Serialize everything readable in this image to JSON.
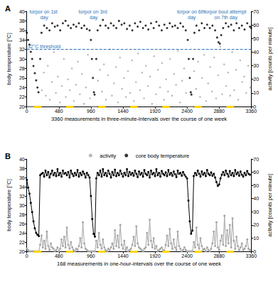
{
  "chart_data": [
    {
      "type": "scatter",
      "title": "A",
      "x_label": "3360 measurements in three-minute-intervals over the course of one week",
      "y_label": "body temperature [°C]",
      "y2_label": "activity [counts per minute]",
      "xlim": [
        0,
        3360
      ],
      "xticks": [
        0,
        480,
        960,
        1440,
        1920,
        2400,
        2880,
        3360
      ],
      "ylim": [
        20,
        40
      ],
      "yticks": [
        20,
        22,
        24,
        26,
        28,
        30,
        32,
        34,
        36,
        38,
        40
      ],
      "y2lim": [
        0,
        70
      ],
      "y2ticks": [
        0,
        10,
        20,
        30,
        40,
        50,
        60,
        70
      ],
      "grid": false,
      "series": [
        {
          "name": "activity",
          "color": "#a6a6a6",
          "marker": "circle",
          "axis": "y2",
          "x": [
            15,
            45,
            75,
            105,
            135,
            165,
            195,
            225,
            255,
            285,
            315,
            345,
            375,
            405,
            435,
            465,
            495,
            525,
            555,
            585,
            615,
            645,
            675,
            705,
            735,
            765,
            795,
            825,
            855,
            885,
            915,
            945,
            975,
            1005,
            1035,
            1065,
            1095,
            1125,
            1155,
            1185,
            1215,
            1245,
            1275,
            1305,
            1335,
            1365,
            1395,
            1425,
            1455,
            1485,
            1515,
            1545,
            1575,
            1605,
            1635,
            1665,
            1695,
            1725,
            1755,
            1785,
            1815,
            1845,
            1875,
            1905,
            1935,
            1965,
            1995,
            2025,
            2055,
            2085,
            2115,
            2145,
            2175,
            2205,
            2235,
            2265,
            2295,
            2325,
            2355,
            2385,
            2415,
            2445,
            2475,
            2505,
            2535,
            2565,
            2595,
            2625,
            2655,
            2685,
            2715,
            2745,
            2775,
            2805,
            2835,
            2865,
            2895,
            2925,
            2955,
            2985,
            3015,
            3045,
            3075,
            3105,
            3135,
            3165,
            3195,
            3225,
            3255,
            3285,
            3315,
            3345
          ],
          "values": [
            0,
            0,
            0,
            0,
            0,
            0,
            0,
            12,
            25,
            8,
            30,
            5,
            18,
            40,
            10,
            22,
            3,
            15,
            35,
            7,
            20,
            12,
            28,
            4,
            16,
            33,
            9,
            24,
            2,
            14,
            38,
            6,
            0,
            0,
            0,
            19,
            27,
            11,
            31,
            5,
            23,
            42,
            8,
            17,
            29,
            3,
            36,
            13,
            21,
            7,
            26,
            10,
            34,
            4,
            18,
            39,
            12,
            25,
            6,
            30,
            15,
            22,
            2,
            37,
            9,
            27,
            14,
            32,
            5,
            20,
            11,
            35,
            8,
            24,
            16,
            41,
            3,
            19,
            28,
            10,
            0,
            0,
            0,
            26,
            13,
            33,
            7,
            21,
            38,
            4,
            17,
            29,
            11,
            36,
            6,
            23,
            44,
            9,
            31,
            15,
            25,
            8,
            40,
            12,
            27,
            5,
            34,
            18,
            22,
            10,
            30,
            14
          ]
        },
        {
          "name": "core body temperature",
          "color": "#000000",
          "marker": "circle",
          "x": [
            0,
            20,
            40,
            60,
            80,
            100,
            120,
            140,
            160,
            175,
            200,
            220,
            260,
            300,
            340,
            380,
            420,
            460,
            500,
            540,
            580,
            620,
            660,
            700,
            740,
            780,
            820,
            860,
            900,
            940,
            960,
            975,
            990,
            1005,
            1015,
            1040,
            1060,
            1100,
            1140,
            1180,
            1220,
            1260,
            1300,
            1340,
            1380,
            1420,
            1460,
            1500,
            1540,
            1580,
            1620,
            1660,
            1700,
            1740,
            1780,
            1820,
            1860,
            1900,
            1940,
            1980,
            2020,
            2060,
            2100,
            2140,
            2180,
            2220,
            2260,
            2300,
            2340,
            2380,
            2410,
            2425,
            2440,
            2455,
            2465,
            2490,
            2510,
            2540,
            2580,
            2620,
            2660,
            2700,
            2740,
            2780,
            2820,
            2850,
            2870,
            2890,
            2910,
            2940,
            2980,
            3020,
            3060,
            3100,
            3140,
            3180,
            3220,
            3260,
            3300,
            3340,
            3360
          ],
          "values": [
            35.5,
            34,
            33,
            31.5,
            30,
            28.5,
            27,
            25.5,
            24,
            23,
            30,
            35.5,
            37,
            36.5,
            36,
            37.5,
            36.8,
            37,
            36,
            37.5,
            38,
            37,
            36.5,
            37.2,
            36.8,
            37.5,
            36.5,
            37,
            36.3,
            36,
            34,
            30,
            26,
            23,
            22.5,
            30,
            36,
            37,
            38.2,
            37,
            36.5,
            37.5,
            37,
            36.5,
            38,
            37.2,
            37.5,
            36.3,
            37,
            36,
            37.5,
            36.8,
            37.8,
            36.5,
            37,
            36.2,
            37.5,
            36.5,
            37.8,
            37,
            36,
            37.2,
            36.5,
            37.5,
            36.8,
            37,
            36.5,
            37.5,
            36.8,
            36,
            34,
            30,
            26,
            23,
            22.5,
            30,
            35.5,
            37,
            36,
            37.5,
            36.5,
            37.2,
            36.5,
            37,
            36,
            34.5,
            33.5,
            33.2,
            35,
            36.5,
            37.5,
            36.8,
            37.2,
            36,
            37.5,
            36.5,
            37,
            36.2,
            37.5,
            36.8,
            36.5
          ]
        }
      ],
      "threshold": {
        "value": 32,
        "label": "32°C threshold"
      },
      "annotations": [
        {
          "text": "torpor on 1st day",
          "x": 260,
          "y": 39.3
        },
        {
          "text": "torpor on 3rd day",
          "x": 1000,
          "y": 39.3
        },
        {
          "text": "torpor on 6th day",
          "x": 2470,
          "y": 39.3
        },
        {
          "text": "torpor bout attempt on 7th day",
          "x": 2980,
          "y": 39.3
        }
      ],
      "light_periods": [
        [
          110,
          220
        ],
        [
          590,
          700
        ],
        [
          1070,
          1180
        ],
        [
          1550,
          1660
        ],
        [
          2030,
          2140
        ],
        [
          2510,
          2620
        ],
        [
          2990,
          3100
        ]
      ]
    },
    {
      "type": "line",
      "title": "B",
      "x_label": "168 measurements in one-hour-intervals over the course of one week",
      "y_label": "body temperature [°C]",
      "y2_label": "activity [counts per minute]",
      "xlim": [
        0,
        3360
      ],
      "xticks": [
        0,
        480,
        960,
        1440,
        1920,
        2400,
        2880,
        3360
      ],
      "ylim": [
        20,
        40
      ],
      "yticks": [
        20,
        22,
        24,
        26,
        28,
        30,
        32,
        34,
        36,
        38,
        40
      ],
      "y2lim": [
        0,
        70
      ],
      "y2ticks": [
        0,
        10,
        20,
        30,
        40,
        50,
        60,
        70
      ],
      "grid": false,
      "legend": "top",
      "x": [
        0,
        20,
        40,
        60,
        80,
        100,
        120,
        140,
        160,
        180,
        200,
        220,
        240,
        260,
        280,
        300,
        320,
        340,
        360,
        380,
        400,
        420,
        440,
        460,
        480,
        500,
        520,
        540,
        560,
        580,
        600,
        620,
        640,
        660,
        680,
        700,
        720,
        740,
        760,
        780,
        800,
        820,
        840,
        860,
        880,
        900,
        920,
        940,
        960,
        980,
        1000,
        1020,
        1040,
        1060,
        1080,
        1100,
        1120,
        1140,
        1160,
        1180,
        1200,
        1220,
        1240,
        1260,
        1280,
        1300,
        1320,
        1340,
        1360,
        1380,
        1400,
        1420,
        1440,
        1460,
        1480,
        1500,
        1520,
        1540,
        1560,
        1580,
        1600,
        1620,
        1640,
        1660,
        1680,
        1700,
        1720,
        1740,
        1760,
        1780,
        1800,
        1820,
        1840,
        1860,
        1880,
        1900,
        1920,
        1940,
        1960,
        1980,
        2000,
        2020,
        2040,
        2060,
        2080,
        2100,
        2120,
        2140,
        2160,
        2180,
        2200,
        2220,
        2240,
        2260,
        2280,
        2300,
        2320,
        2340,
        2360,
        2380,
        2400,
        2420,
        2440,
        2460,
        2480,
        2500,
        2520,
        2540,
        2560,
        2580,
        2600,
        2620,
        2640,
        2660,
        2680,
        2700,
        2720,
        2740,
        2760,
        2780,
        2800,
        2820,
        2840,
        2860,
        2880,
        2900,
        2920,
        2940,
        2960,
        2980,
        3000,
        3020,
        3040,
        3060,
        3080,
        3100,
        3120,
        3140,
        3160,
        3180,
        3200,
        3220,
        3240,
        3260,
        3280,
        3300,
        3320,
        3340
      ],
      "series": [
        {
          "name": "core body temperature",
          "color": "#000000",
          "marker": "circle",
          "line_style": "solid",
          "values": [
            35.5,
            33.8,
            32.5,
            30.5,
            28.5,
            26.5,
            25,
            24,
            23.6,
            23.3,
            36.5,
            36.8,
            37,
            36.2,
            37.5,
            36.5,
            37.2,
            36,
            36.8,
            37.5,
            36.5,
            37,
            36.3,
            37.8,
            36.5,
            37,
            36.2,
            37.5,
            36.8,
            37,
            36.5,
            37.2,
            36,
            37.5,
            36.8,
            36.3,
            37,
            36.5,
            37.6,
            36.2,
            37,
            36.5,
            37.3,
            36.8,
            36,
            37,
            36.5,
            36,
            32,
            27,
            23.8,
            23.2,
            35.8,
            37,
            36.5,
            37.5,
            36.2,
            37.8,
            36.5,
            37,
            36.3,
            37.5,
            36.8,
            36,
            37.2,
            36.5,
            37.7,
            36.3,
            37,
            36.5,
            37.5,
            36.8,
            36.2,
            37,
            36.5,
            37.8,
            36.3,
            37.2,
            36.6,
            37,
            36.4,
            37.5,
            36.8,
            36.1,
            37.3,
            36.6,
            37,
            36.2,
            37.6,
            36.8,
            36.5,
            37.2,
            36,
            37.5,
            36.7,
            37,
            36.3,
            37.8,
            36.5,
            37,
            36.2,
            37.4,
            36.8,
            36.5,
            37.1,
            36.3,
            37.6,
            36.6,
            37,
            36.4,
            37.3,
            36.7,
            36.1,
            37.5,
            36.8,
            37,
            36.4,
            37.2,
            36.6,
            36.2,
            35.8,
            31,
            26.5,
            23.8,
            24.5,
            36.3,
            37,
            36.5,
            37.5,
            36.8,
            36.2,
            37.3,
            36.6,
            37,
            36.3,
            37.6,
            36.8,
            36.5,
            37.1,
            36.4,
            36.8,
            36,
            35,
            34.2,
            34.5,
            35.8,
            36.6,
            37.2,
            36.5,
            37.5,
            36.8,
            36.2,
            37.4,
            36.5,
            37,
            36.3,
            37.6,
            36.7,
            37.1,
            36.4,
            37.3,
            36.6,
            36.2,
            37,
            36.5,
            37.4,
            36.8,
            36.6
          ]
        },
        {
          "name": "activity",
          "color": "#a6a6a6",
          "marker": "circle",
          "line_style": "solid",
          "axis": "y2",
          "values": [
            2,
            1,
            0,
            0,
            0,
            0,
            0,
            0,
            0,
            0,
            5,
            12,
            3,
            8,
            2,
            15,
            4,
            1,
            6,
            3,
            2,
            0,
            1,
            3,
            0,
            2,
            9,
            4,
            11,
            3,
            18,
            5,
            2,
            7,
            3,
            1,
            0,
            2,
            1,
            4,
            10,
            3,
            22,
            6,
            2,
            1,
            0,
            0,
            0,
            0,
            0,
            0,
            8,
            3,
            14,
            5,
            2,
            9,
            3,
            1,
            0,
            2,
            1,
            3,
            6,
            2,
            16,
            4,
            12,
            3,
            20,
            5,
            2,
            8,
            1,
            3,
            0,
            1,
            2,
            5,
            11,
            4,
            19,
            6,
            3,
            2,
            1,
            0,
            2,
            3,
            14,
            5,
            24,
            8,
            3,
            10,
            2,
            4,
            0,
            1,
            2,
            3,
            1,
            0,
            5,
            12,
            4,
            17,
            6,
            2,
            9,
            3,
            1,
            15,
            4,
            2,
            0,
            1,
            3,
            1,
            0,
            0,
            0,
            0,
            0,
            7,
            3,
            18,
            5,
            2,
            10,
            4,
            1,
            2,
            0,
            3,
            1,
            0,
            2,
            6,
            15,
            4,
            22,
            3,
            1,
            8,
            12,
            5,
            27,
            4,
            16,
            6,
            20,
            3,
            25,
            8,
            2,
            11,
            4,
            1,
            3,
            6,
            1,
            2,
            4,
            9,
            2,
            1
          ]
        }
      ],
      "light_periods": [
        [
          110,
          220
        ],
        [
          590,
          700
        ],
        [
          1070,
          1180
        ],
        [
          1550,
          1660
        ],
        [
          2030,
          2140
        ],
        [
          2510,
          2620
        ],
        [
          2990,
          3100
        ]
      ]
    }
  ]
}
